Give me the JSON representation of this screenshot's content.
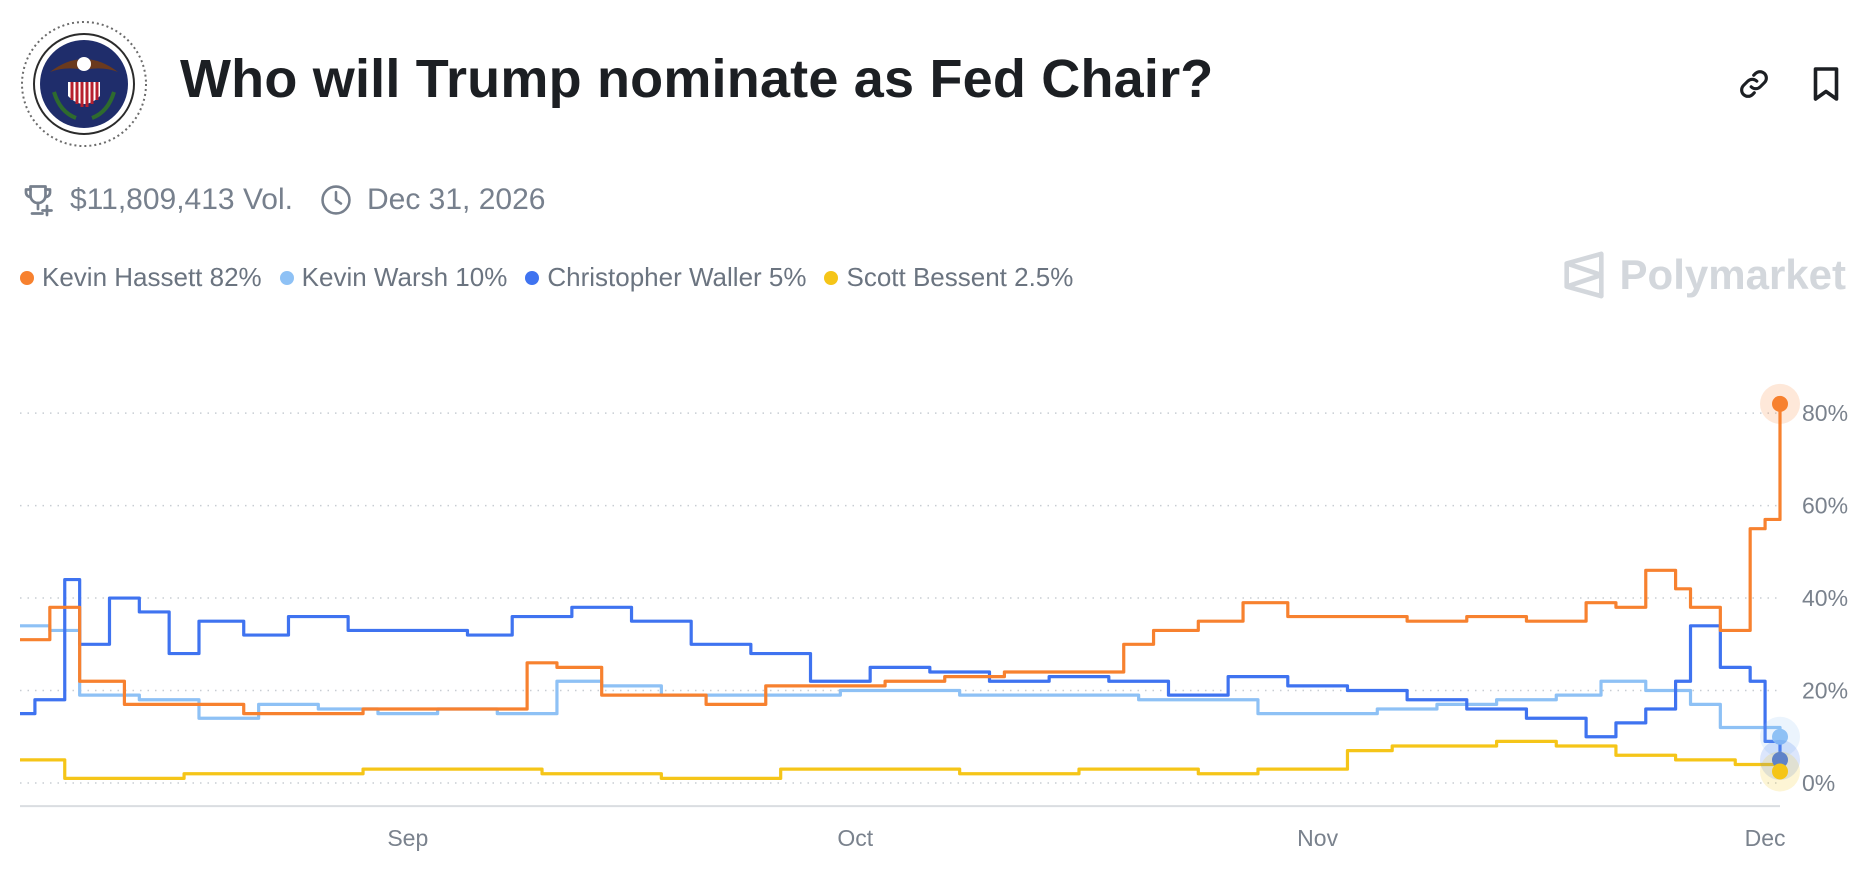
{
  "header": {
    "title": "Who will Trump nominate as Fed Chair?",
    "logo_icon": "federal-reserve-seal",
    "actions": [
      {
        "name": "copy-link",
        "icon": "link-icon"
      },
      {
        "name": "bookmark",
        "icon": "bookmark-icon"
      }
    ]
  },
  "meta": {
    "volume": "$11,809,413 Vol.",
    "volume_icon": "trophy-icon",
    "end_date": "Dec 31, 2026",
    "end_date_icon": "clock-icon"
  },
  "legend": [
    {
      "label": "Kevin Hassett 82%",
      "color": "#f7812f"
    },
    {
      "label": "Kevin Warsh 10%",
      "color": "#8ec1f5"
    },
    {
      "label": "Christopher Waller 5%",
      "color": "#3f73f0"
    },
    {
      "label": "Scott Bessent 2.5%",
      "color": "#f5c518"
    }
  ],
  "brand": {
    "name": "Polymarket"
  },
  "chart_data": {
    "type": "line",
    "x_ticks": [
      "Sep",
      "Oct",
      "Nov",
      "Dec"
    ],
    "x_tick_dates": [
      "Sep 1",
      "Oct 1",
      "Nov 1",
      "Dec 1"
    ],
    "y_ticks": [
      "0%",
      "20%",
      "40%",
      "60%",
      "80%"
    ],
    "y_tick_values": [
      0,
      20,
      40,
      60,
      80
    ],
    "ylim": [
      0,
      85
    ],
    "xlim": [
      "Aug 6",
      "Dec 2"
    ],
    "grid": "horizontal-dotted",
    "series": [
      {
        "name": "Kevin Hassett",
        "color": "#f7812f",
        "x": [
          "Aug 6",
          "Aug 8",
          "Aug 10",
          "Aug 13",
          "Aug 17",
          "Aug 21",
          "Aug 25",
          "Aug 29",
          "Sep 2",
          "Sep 6",
          "Sep 9",
          "Sep 11",
          "Sep 14",
          "Sep 17",
          "Sep 21",
          "Sep 25",
          "Sep 29",
          "Oct 3",
          "Oct 7",
          "Oct 11",
          "Oct 15",
          "Oct 19",
          "Oct 21",
          "Oct 24",
          "Oct 27",
          "Oct 30",
          "Nov 3",
          "Nov 7",
          "Nov 11",
          "Nov 15",
          "Nov 19",
          "Nov 21",
          "Nov 23",
          "Nov 25",
          "Nov 26",
          "Nov 28",
          "Nov 30",
          "Dec 1",
          "Dec 2"
        ],
        "values": [
          31,
          38,
          22,
          17,
          17,
          15,
          15,
          16,
          16,
          16,
          26,
          25,
          19,
          19,
          17,
          21,
          21,
          22,
          23,
          24,
          24,
          30,
          33,
          35,
          39,
          36,
          36,
          35,
          36,
          35,
          39,
          38,
          46,
          42,
          38,
          33,
          55,
          57,
          82
        ]
      },
      {
        "name": "Kevin Warsh",
        "color": "#8ec1f5",
        "x": [
          "Aug 6",
          "Aug 8",
          "Aug 10",
          "Aug 14",
          "Aug 18",
          "Aug 22",
          "Aug 26",
          "Aug 30",
          "Sep 3",
          "Sep 7",
          "Sep 11",
          "Sep 14",
          "Sep 18",
          "Sep 22",
          "Sep 26",
          "Sep 30",
          "Oct 4",
          "Oct 8",
          "Oct 12",
          "Oct 16",
          "Oct 20",
          "Oct 24",
          "Oct 28",
          "Nov 1",
          "Nov 5",
          "Nov 9",
          "Nov 13",
          "Nov 17",
          "Nov 20",
          "Nov 23",
          "Nov 26",
          "Nov 28",
          "Dec 2"
        ],
        "values": [
          34,
          33,
          19,
          18,
          14,
          17,
          16,
          15,
          16,
          15,
          22,
          21,
          19,
          19,
          19,
          20,
          20,
          19,
          19,
          19,
          18,
          18,
          15,
          15,
          16,
          17,
          18,
          19,
          22,
          20,
          17,
          12,
          10
        ]
      },
      {
        "name": "Christopher Waller",
        "color": "#3f73f0",
        "x": [
          "Aug 6",
          "Aug 7",
          "Aug 9",
          "Aug 10",
          "Aug 12",
          "Aug 14",
          "Aug 16",
          "Aug 18",
          "Aug 21",
          "Aug 24",
          "Aug 28",
          "Sep 1",
          "Sep 5",
          "Sep 8",
          "Sep 12",
          "Sep 16",
          "Sep 20",
          "Sep 24",
          "Sep 28",
          "Oct 2",
          "Oct 6",
          "Oct 10",
          "Oct 14",
          "Oct 18",
          "Oct 22",
          "Oct 26",
          "Oct 30",
          "Nov 3",
          "Nov 7",
          "Nov 11",
          "Nov 15",
          "Nov 19",
          "Nov 21",
          "Nov 23",
          "Nov 25",
          "Nov 26",
          "Nov 28",
          "Nov 30",
          "Dec 1",
          "Dec 2"
        ],
        "values": [
          15,
          18,
          44,
          30,
          40,
          37,
          28,
          35,
          32,
          36,
          33,
          33,
          32,
          36,
          38,
          35,
          30,
          28,
          22,
          25,
          24,
          22,
          23,
          22,
          19,
          23,
          21,
          20,
          18,
          16,
          14,
          10,
          13,
          16,
          22,
          34,
          25,
          22,
          9,
          5
        ]
      },
      {
        "name": "Scott Bessent",
        "color": "#f5c518",
        "x": [
          "Aug 6",
          "Aug 9",
          "Aug 13",
          "Aug 17",
          "Aug 21",
          "Aug 25",
          "Aug 29",
          "Sep 2",
          "Sep 6",
          "Sep 10",
          "Sep 14",
          "Sep 18",
          "Sep 22",
          "Sep 26",
          "Sep 30",
          "Oct 4",
          "Oct 8",
          "Oct 12",
          "Oct 16",
          "Oct 20",
          "Oct 24",
          "Oct 28",
          "Nov 1",
          "Nov 3",
          "Nov 6",
          "Nov 10",
          "Nov 13",
          "Nov 17",
          "Nov 21",
          "Nov 25",
          "Nov 29",
          "Dec 2"
        ],
        "values": [
          5,
          1,
          1,
          2,
          2,
          2,
          3,
          3,
          3,
          2,
          2,
          1,
          1,
          3,
          3,
          3,
          2,
          2,
          3,
          3,
          2,
          3,
          3,
          7,
          8,
          8,
          9,
          8,
          6,
          5,
          4,
          2.5
        ]
      }
    ]
  }
}
